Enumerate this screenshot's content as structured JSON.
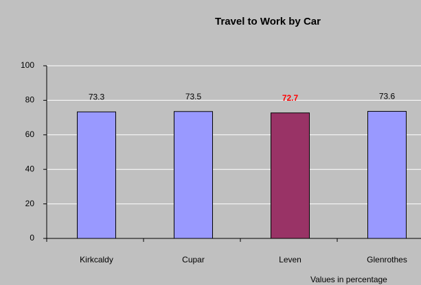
{
  "chart_data": {
    "type": "bar",
    "title": "Travel to Work by Car",
    "categories": [
      "Kirkcaldy",
      "Cupar",
      "Leven",
      "Glenrothes"
    ],
    "values": [
      73.3,
      73.5,
      72.7,
      73.6
    ],
    "colors": [
      "#9999ff",
      "#9999ff",
      "#993366",
      "#9999ff"
    ],
    "value_label_colors": [
      "#000000",
      "#000000",
      "#ff0000",
      "#000000"
    ],
    "ylim": [
      0,
      100
    ],
    "yticks": [
      0,
      20,
      40,
      60,
      80,
      100
    ],
    "grid": true,
    "note": "Values in percentage"
  }
}
